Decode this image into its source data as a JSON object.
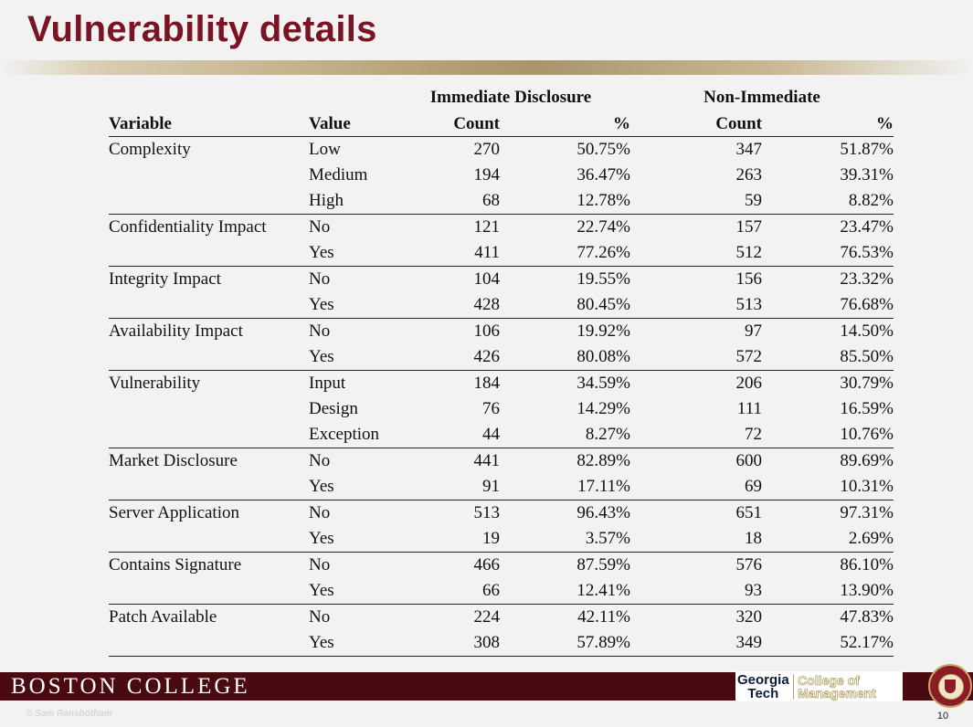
{
  "title": "Vulnerability details",
  "table": {
    "group_headers": [
      "Immediate Disclosure",
      "Non-Immediate"
    ],
    "columns": [
      "Variable",
      "Value",
      "Count",
      "%",
      "Count",
      "%"
    ],
    "rows": [
      {
        "variable": "Complexity",
        "value": "Low",
        "count1": "270",
        "pct1": "50.75%",
        "count2": "347",
        "pct2": "51.87%"
      },
      {
        "variable": "",
        "value": "Medium",
        "count1": "194",
        "pct1": "36.47%",
        "count2": "263",
        "pct2": "39.31%"
      },
      {
        "variable": "",
        "value": "High",
        "count1": "68",
        "pct1": "12.78%",
        "count2": "59",
        "pct2": "8.82%"
      },
      {
        "variable": "Confidentiality Impact",
        "value": "No",
        "count1": "121",
        "pct1": "22.74%",
        "count2": "157",
        "pct2": "23.47%"
      },
      {
        "variable": "",
        "value": "Yes",
        "count1": "411",
        "pct1": "77.26%",
        "count2": "512",
        "pct2": "76.53%"
      },
      {
        "variable": "Integrity Impact",
        "value": "No",
        "count1": "104",
        "pct1": "19.55%",
        "count2": "156",
        "pct2": "23.32%"
      },
      {
        "variable": "",
        "value": "Yes",
        "count1": "428",
        "pct1": "80.45%",
        "count2": "513",
        "pct2": "76.68%"
      },
      {
        "variable": "Availability Impact",
        "value": "No",
        "count1": "106",
        "pct1": "19.92%",
        "count2": "97",
        "pct2": "14.50%"
      },
      {
        "variable": "",
        "value": "Yes",
        "count1": "426",
        "pct1": "80.08%",
        "count2": "572",
        "pct2": "85.50%"
      },
      {
        "variable": "Vulnerability",
        "value": "Input",
        "count1": "184",
        "pct1": "34.59%",
        "count2": "206",
        "pct2": "30.79%"
      },
      {
        "variable": "",
        "value": "Design",
        "count1": "76",
        "pct1": "14.29%",
        "count2": "111",
        "pct2": "16.59%"
      },
      {
        "variable": "",
        "value": "Exception",
        "count1": "44",
        "pct1": "8.27%",
        "count2": "72",
        "pct2": "10.76%"
      },
      {
        "variable": "Market Disclosure",
        "value": "No",
        "count1": "441",
        "pct1": "82.89%",
        "count2": "600",
        "pct2": "89.69%"
      },
      {
        "variable": "",
        "value": "Yes",
        "count1": "91",
        "pct1": "17.11%",
        "count2": "69",
        "pct2": "10.31%"
      },
      {
        "variable": "Server Application",
        "value": "No",
        "count1": "513",
        "pct1": "96.43%",
        "count2": "651",
        "pct2": "97.31%"
      },
      {
        "variable": "",
        "value": "Yes",
        "count1": "19",
        "pct1": "3.57%",
        "count2": "18",
        "pct2": "2.69%"
      },
      {
        "variable": "Contains Signature",
        "value": "No",
        "count1": "466",
        "pct1": "87.59%",
        "count2": "576",
        "pct2": "86.10%"
      },
      {
        "variable": "",
        "value": "Yes",
        "count1": "66",
        "pct1": "12.41%",
        "count2": "93",
        "pct2": "13.90%"
      },
      {
        "variable": "Patch Available",
        "value": "No",
        "count1": "224",
        "pct1": "42.11%",
        "count2": "320",
        "pct2": "47.83%"
      },
      {
        "variable": "",
        "value": "Yes",
        "count1": "308",
        "pct1": "57.89%",
        "count2": "349",
        "pct2": "52.17%"
      }
    ]
  },
  "footer": {
    "org_name": "BOSTON COLLEGE",
    "partner_left": "Georgia Tech",
    "partner_right": "College of Management",
    "copyright": "© Sam Ransbotham",
    "page_number": "10"
  },
  "colors": {
    "title": "#7a1424",
    "footer_bar": "#4a0a12",
    "rule_gold": "#b9a77a",
    "background": "#f2f2f2"
  }
}
